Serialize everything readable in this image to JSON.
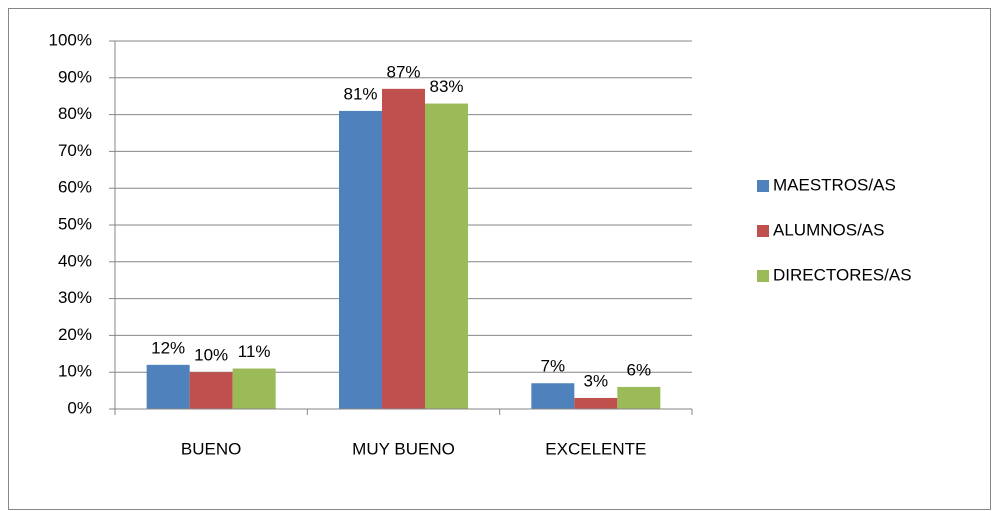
{
  "chart_data": {
    "type": "bar",
    "categories": [
      "BUENO",
      "MUY BUENO",
      "EXCELENTE"
    ],
    "series": [
      {
        "name": "MAESTROS/AS",
        "color": "#4f81bd",
        "values": [
          12,
          81,
          7
        ],
        "value_labels": [
          "12%",
          "81%",
          "7%"
        ]
      },
      {
        "name": "ALUMNOS/AS",
        "color": "#c0504d",
        "values": [
          10,
          87,
          3
        ],
        "value_labels": [
          "10%",
          "87%",
          "3%"
        ]
      },
      {
        "name": "DIRECTORES/AS",
        "color": "#9bbb59",
        "values": [
          11,
          83,
          6
        ],
        "value_labels": [
          "11%",
          "83%",
          "6%"
        ]
      }
    ],
    "ylim": [
      0,
      100
    ],
    "yticks": [
      {
        "value": 0,
        "label": "0%"
      },
      {
        "value": 10,
        "label": "10%"
      },
      {
        "value": 20,
        "label": "20%"
      },
      {
        "value": 30,
        "label": "30%"
      },
      {
        "value": 40,
        "label": "40%"
      },
      {
        "value": 50,
        "label": "50%"
      },
      {
        "value": 60,
        "label": "60%"
      },
      {
        "value": 70,
        "label": "70%"
      },
      {
        "value": 80,
        "label": "80%"
      },
      {
        "value": 90,
        "label": "90%"
      },
      {
        "value": 100,
        "label": "100%"
      }
    ],
    "grid": true,
    "legend": "right"
  }
}
